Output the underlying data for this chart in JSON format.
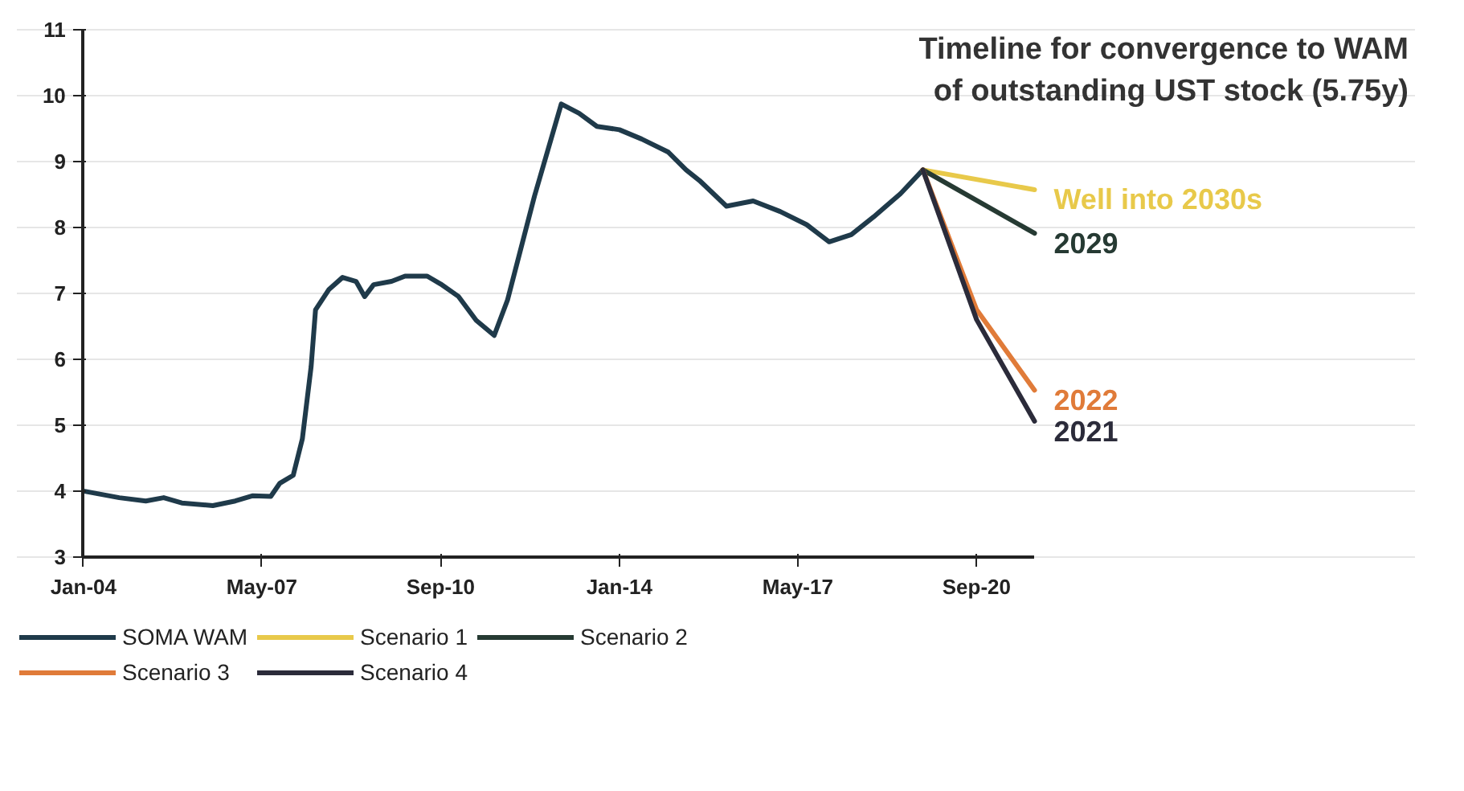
{
  "chart_data": {
    "type": "line",
    "title": "Timeline for convergence to WAM of outstanding UST stock (5.75y)",
    "xlim": [
      "2004-01",
      "2021-10"
    ],
    "xticks": [
      {
        "value": "2004-01",
        "label": "Jan-04"
      },
      {
        "value": "2007-05",
        "label": "May-07"
      },
      {
        "value": "2010-09",
        "label": "Sep-10"
      },
      {
        "value": "2014-01",
        "label": "Jan-14"
      },
      {
        "value": "2017-05",
        "label": "May-17"
      },
      {
        "value": "2020-09",
        "label": "Sep-20"
      }
    ],
    "ylim": [
      3,
      11
    ],
    "yticks": [
      3,
      4,
      5,
      6,
      7,
      8,
      9,
      10,
      11
    ],
    "grid": "y",
    "legend": "bottom",
    "line_style": "solid",
    "series": [
      {
        "name": "SOMA WAM",
        "color": "#1f3a4a",
        "x": [
          "2004-01",
          "2004-09",
          "2005-03",
          "2005-07",
          "2005-11",
          "2006-06",
          "2006-11",
          "2007-03",
          "2007-07",
          "2007-09",
          "2007-12",
          "2008-02",
          "2008-04",
          "2008-05",
          "2008-08",
          "2008-11",
          "2009-02",
          "2009-04",
          "2009-06",
          "2009-10",
          "2010-01",
          "2010-06",
          "2010-09",
          "2011-01",
          "2011-05",
          "2011-09",
          "2011-12",
          "2012-06",
          "2012-12",
          "2013-04",
          "2013-08",
          "2014-01",
          "2014-06",
          "2014-12",
          "2015-04",
          "2015-07",
          "2016-01",
          "2016-07",
          "2017-01",
          "2017-07",
          "2017-12",
          "2018-05",
          "2018-10",
          "2019-04",
          "2019-09"
        ],
        "values": [
          4.0,
          3.9,
          3.85,
          3.9,
          3.82,
          3.78,
          3.85,
          3.93,
          3.92,
          4.12,
          4.24,
          4.79,
          5.89,
          6.75,
          7.06,
          7.24,
          7.18,
          6.95,
          7.13,
          7.18,
          7.26,
          7.26,
          7.14,
          6.95,
          6.59,
          6.36,
          6.9,
          8.47,
          9.87,
          9.73,
          9.53,
          9.48,
          9.34,
          9.14,
          8.87,
          8.71,
          8.32,
          8.4,
          8.24,
          8.04,
          7.78,
          7.89,
          8.16,
          8.51,
          8.87
        ]
      },
      {
        "name": "Scenario 1",
        "color": "#e8c94a",
        "x": [
          "2019-09",
          "2021-10"
        ],
        "values": [
          8.87,
          8.57
        ]
      },
      {
        "name": "Scenario 2",
        "color": "#263a33",
        "x": [
          "2019-09",
          "2021-10"
        ],
        "values": [
          8.87,
          7.91
        ]
      },
      {
        "name": "Scenario 3",
        "color": "#e07b39",
        "x": [
          "2019-09",
          "2020-09",
          "2021-10"
        ],
        "values": [
          8.87,
          6.75,
          5.53
        ]
      },
      {
        "name": "Scenario 4",
        "color": "#2b2b3a",
        "x": [
          "2019-09",
          "2020-09",
          "2021-10"
        ],
        "values": [
          8.87,
          6.6,
          5.06
        ]
      }
    ],
    "annotations": [
      {
        "text": "Well into 2030s",
        "x": "2021-10",
        "y": 8.57
      },
      {
        "text": "2029",
        "x": "2021-10",
        "y": 7.91
      },
      {
        "text": "2022",
        "x": "2021-10",
        "y": 5.53
      },
      {
        "text": "2021",
        "x": "2021-10",
        "y": 5.06
      }
    ]
  }
}
